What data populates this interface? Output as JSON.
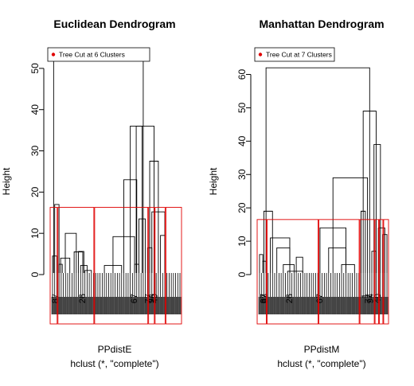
{
  "chart_data": [
    {
      "type": "dendrogram",
      "title": "Euclidean Dendrogram",
      "ylabel": "Height",
      "xlabel": "PPdistE",
      "sublabel": "hclust (*, \"complete\")",
      "ylim": [
        0,
        55
      ],
      "yticks": [
        0,
        10,
        20,
        30,
        40,
        50
      ],
      "legend": {
        "label": "Tree Cut at 6 Clusters",
        "position": "top-left",
        "color": "#e00000"
      },
      "cut_height": 16.3,
      "n_leaves": 60,
      "cluster_boundaries": [
        0,
        3,
        20,
        45,
        48,
        53,
        60
      ],
      "leaf_labels": [
        {
          "index": 1.5,
          "text": "87"
        },
        {
          "index": 14,
          "text": "26"
        },
        {
          "index": 38,
          "text": "67"
        },
        {
          "index": 44.5,
          "text": "77"
        },
        {
          "index": 46,
          "text": "94"
        },
        {
          "index": 47.5,
          "text": "40"
        }
      ],
      "merges": [
        {
          "a": 0,
          "b": 2.0,
          "h": 4.5
        },
        {
          "a": 1,
          "b": 3,
          "h": 17
        },
        {
          "a": 3,
          "b": 4.5,
          "h": 2.5
        },
        {
          "a": 3.75,
          "b": 8,
          "h": 4
        },
        {
          "a": 5.9,
          "b": 11,
          "h": 10
        },
        {
          "a": 10,
          "b": 14,
          "h": 5.5
        },
        {
          "a": 13,
          "b": 16,
          "h": 2.2
        },
        {
          "a": 15,
          "b": 18,
          "h": 1.0
        },
        {
          "a": 12,
          "b": 14.5,
          "h": 5.6
        },
        {
          "a": 24,
          "b": 32,
          "h": 2.2
        },
        {
          "a": 28,
          "b": 38,
          "h": 9.2
        },
        {
          "a": 38,
          "b": 40,
          "h": 2.5
        },
        {
          "a": 33,
          "b": 39,
          "h": 23
        },
        {
          "a": 40,
          "b": 43,
          "h": 13.5
        },
        {
          "a": 36,
          "b": 41.5,
          "h": 36
        },
        {
          "a": 44,
          "b": 46,
          "h": 6.5
        },
        {
          "a": 46,
          "b": 52,
          "h": 15.2
        },
        {
          "a": 45,
          "b": 49,
          "h": 27.5
        },
        {
          "a": 50,
          "b": 52,
          "h": 9.5
        },
        {
          "a": 38.75,
          "b": 47,
          "h": 36
        }
      ],
      "root": {
        "a": 0.5,
        "b": 42,
        "h": 52,
        "h_left": 52,
        "h_right": 52
      }
    },
    {
      "type": "dendrogram",
      "title": "Manhattan Dendrogram",
      "ylabel": "Height",
      "xlabel": "PPdistM",
      "sublabel": "hclust (*, \"complete\")",
      "ylim": [
        0,
        68
      ],
      "yticks": [
        0,
        10,
        20,
        30,
        40,
        50,
        60
      ],
      "legend": {
        "label": "Tree Cut at 7 Clusters",
        "position": "top-left",
        "color": "#e00000"
      },
      "cut_height": 16.5,
      "n_leaves": 60,
      "cluster_boundaries": [
        0,
        4,
        28,
        47,
        54,
        56,
        58,
        60
      ],
      "leaf_labels": [
        {
          "index": 2,
          "text": "87"
        },
        {
          "index": 2.6,
          "text": "93"
        },
        {
          "index": 14,
          "text": "26"
        },
        {
          "index": 28,
          "text": "67"
        },
        {
          "index": 49,
          "text": "1"
        },
        {
          "index": 50.5,
          "text": "77"
        },
        {
          "index": 51.5,
          "text": "94"
        },
        {
          "index": 55,
          "text": "40"
        }
      ],
      "merges": [
        {
          "a": 0,
          "b": 1.5,
          "h": 6
        },
        {
          "a": 1.5,
          "b": 3,
          "h": 4
        },
        {
          "a": 2,
          "b": 6,
          "h": 19
        },
        {
          "a": 5,
          "b": 14,
          "h": 11
        },
        {
          "a": 8,
          "b": 14,
          "h": 8
        },
        {
          "a": 11,
          "b": 16,
          "h": 3
        },
        {
          "a": 13,
          "b": 20,
          "h": 1
        },
        {
          "a": 17,
          "b": 20,
          "h": 5.2
        },
        {
          "a": 28,
          "b": 40,
          "h": 14
        },
        {
          "a": 32,
          "b": 40,
          "h": 8
        },
        {
          "a": 38,
          "b": 44,
          "h": 3
        },
        {
          "a": 34,
          "b": 50,
          "h": 29
        },
        {
          "a": 47,
          "b": 49,
          "h": 19
        },
        {
          "a": 48,
          "b": 54,
          "h": 49
        },
        {
          "a": 52,
          "b": 54,
          "h": 7
        },
        {
          "a": 53,
          "b": 56,
          "h": 39
        },
        {
          "a": 55,
          "b": 58,
          "h": 14
        },
        {
          "a": 57,
          "b": 59,
          "h": 12
        }
      ],
      "root": {
        "a": 3,
        "b": 51,
        "h": 62,
        "h_left": 62,
        "h_right": 62
      }
    }
  ]
}
